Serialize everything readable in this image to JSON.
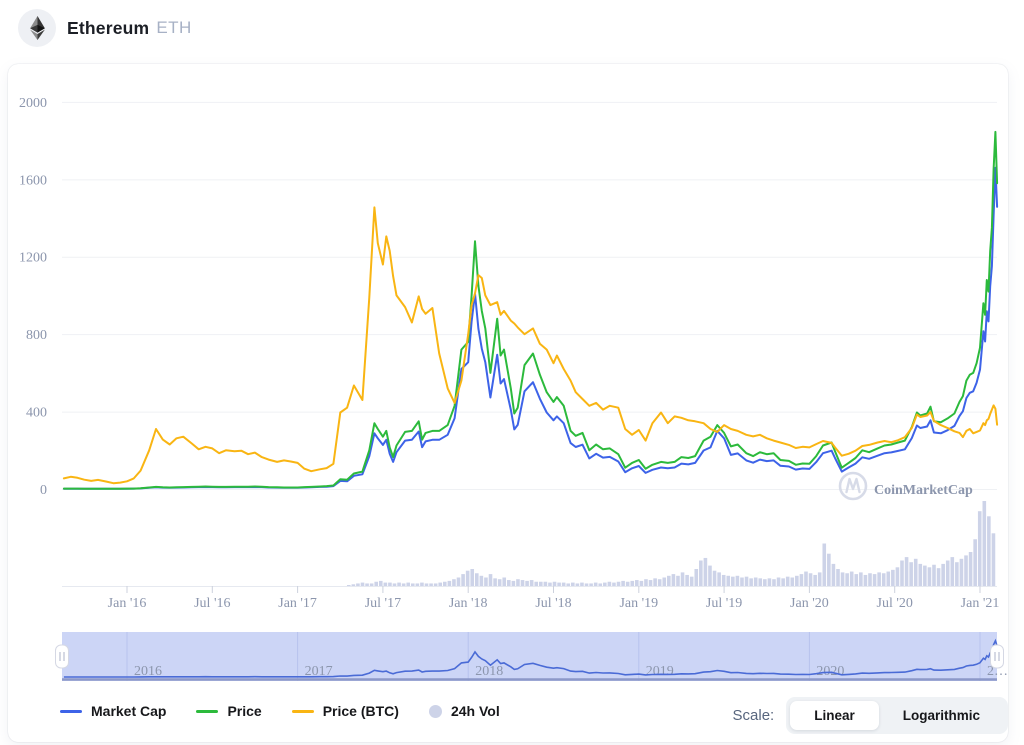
{
  "header": {
    "title": "Ethereum",
    "symbol": "ETH"
  },
  "legend": {
    "items": [
      {
        "label": "Market Cap",
        "color": "#3d63e8",
        "type": "line"
      },
      {
        "label": "Price",
        "color": "#2cba3c",
        "type": "line"
      },
      {
        "label": "Price (BTC)",
        "color": "#f9b513",
        "type": "line"
      },
      {
        "label": "24h Vol",
        "color": "#cdd3e8",
        "type": "dot"
      }
    ]
  },
  "scale_toggle": {
    "label": "Scale:",
    "options": [
      "Linear",
      "Logarithmic"
    ],
    "selected": "Linear"
  },
  "watermark": {
    "text": "CoinMarketCap"
  },
  "chart_data": {
    "type": "line",
    "title": "Ethereum (ETH) all-time chart, linear scale",
    "x_unit": "decimal_year",
    "xlim": [
      2015.62,
      2021.1
    ],
    "ylim": [
      0,
      2070
    ],
    "grid": true,
    "yticks": [
      0,
      400,
      800,
      1200,
      1600,
      2000
    ],
    "xticks": [
      {
        "t": 2016.0,
        "label": "Jan '16"
      },
      {
        "t": 2016.5,
        "label": "Jul '16"
      },
      {
        "t": 2017.0,
        "label": "Jan '17"
      },
      {
        "t": 2017.5,
        "label": "Jul '17"
      },
      {
        "t": 2018.0,
        "label": "Jan '18"
      },
      {
        "t": 2018.5,
        "label": "Jul '18"
      },
      {
        "t": 2019.0,
        "label": "Jan '19"
      },
      {
        "t": 2019.5,
        "label": "Jul '19"
      },
      {
        "t": 2020.0,
        "label": "Jan '20"
      },
      {
        "t": 2020.5,
        "label": "Jul '20"
      },
      {
        "t": 2021.0,
        "label": "Jan '21"
      }
    ],
    "x": [
      2015.63,
      2015.67,
      2015.71,
      2015.75,
      2015.79,
      2015.83,
      2015.88,
      2015.92,
      2015.96,
      2016.0,
      2016.04,
      2016.08,
      2016.13,
      2016.17,
      2016.21,
      2016.25,
      2016.29,
      2016.33,
      2016.38,
      2016.42,
      2016.46,
      2016.5,
      2016.54,
      2016.58,
      2016.63,
      2016.67,
      2016.71,
      2016.75,
      2016.79,
      2016.83,
      2016.88,
      2016.92,
      2016.96,
      2017.0,
      2017.04,
      2017.08,
      2017.13,
      2017.17,
      2017.21,
      2017.25,
      2017.29,
      2017.33,
      2017.38,
      2017.42,
      2017.45,
      2017.47,
      2017.5,
      2017.52,
      2017.54,
      2017.56,
      2017.58,
      2017.63,
      2017.67,
      2017.71,
      2017.73,
      2017.75,
      2017.79,
      2017.83,
      2017.88,
      2017.92,
      2017.96,
      2018.0,
      2018.02,
      2018.04,
      2018.06,
      2018.08,
      2018.1,
      2018.13,
      2018.17,
      2018.19,
      2018.21,
      2018.25,
      2018.27,
      2018.29,
      2018.33,
      2018.38,
      2018.42,
      2018.46,
      2018.5,
      2018.52,
      2018.56,
      2018.6,
      2018.63,
      2018.67,
      2018.71,
      2018.75,
      2018.79,
      2018.83,
      2018.88,
      2018.92,
      2018.96,
      2019.0,
      2019.04,
      2019.08,
      2019.13,
      2019.17,
      2019.21,
      2019.25,
      2019.29,
      2019.33,
      2019.38,
      2019.42,
      2019.46,
      2019.5,
      2019.54,
      2019.58,
      2019.63,
      2019.67,
      2019.71,
      2019.75,
      2019.79,
      2019.83,
      2019.88,
      2019.92,
      2019.96,
      2020.0,
      2020.04,
      2020.08,
      2020.13,
      2020.15,
      2020.19,
      2020.23,
      2020.27,
      2020.31,
      2020.35,
      2020.4,
      2020.44,
      2020.48,
      2020.52,
      2020.56,
      2020.6,
      2020.63,
      2020.65,
      2020.69,
      2020.71,
      2020.73,
      2020.77,
      2020.81,
      2020.85,
      2020.88,
      2020.9,
      2020.92,
      2020.94,
      2020.96,
      2020.98,
      2021.0,
      2021.02,
      2021.03,
      2021.04,
      2021.05,
      2021.06,
      2021.07,
      2021.08,
      2021.09,
      2021.1
    ],
    "series": [
      {
        "name": "Market Cap",
        "color": "#3d63e8",
        "values": [
          1,
          1,
          1,
          1,
          1,
          1,
          1,
          1,
          1,
          1,
          2,
          3,
          6,
          9,
          7,
          6,
          7,
          8,
          9,
          10,
          10,
          10,
          9,
          9,
          10,
          10,
          10,
          10,
          10,
          8,
          7,
          6,
          6,
          6,
          8,
          9,
          11,
          12,
          15,
          42,
          40,
          68,
          76,
          170,
          288,
          262,
          228,
          254,
          182,
          140,
          190,
          250,
          254,
          297,
          216,
          246,
          254,
          254,
          280,
          366,
          620,
          655,
          865,
          1010,
          828,
          725,
          655,
          473,
          694,
          545,
          568,
          410,
          308,
          331,
          505,
          552,
          466,
          395,
          355,
          375,
          340,
          237,
          217,
          229,
          158,
          182,
          162,
          166,
          142,
          87,
          107,
          119,
          83,
          99,
          111,
          107,
          111,
          131,
          127,
          135,
          199,
          215,
          300,
          262,
          176,
          184,
          148,
          136,
          152,
          144,
          148,
          120,
          116,
          100,
          106,
          104,
          139,
          185,
          198,
          160,
          90,
          111,
          131,
          164,
          156,
          172,
          185,
          189,
          197,
          205,
          263,
          328,
          315,
          323,
          355,
          292,
          288,
          304,
          326,
          377,
          402,
          470,
          497,
          505,
          549,
          617,
          815,
          762,
          918,
          866,
          1048,
          1152,
          1412,
          1660,
          1458
        ]
      },
      {
        "name": "Price",
        "color": "#2cba3c",
        "values": [
          2,
          2,
          2,
          1,
          1,
          1,
          1,
          1,
          1,
          2,
          2,
          4,
          8,
          11,
          9,
          8,
          9,
          10,
          11,
          12,
          13,
          12,
          11,
          11,
          12,
          12,
          12,
          13,
          12,
          10,
          9,
          8,
          8,
          8,
          10,
          11,
          13,
          15,
          18,
          50,
          48,
          80,
          90,
          200,
          340,
          310,
          270,
          300,
          215,
          165,
          225,
          295,
          300,
          350,
          255,
          290,
          300,
          300,
          330,
          430,
          720,
          760,
          1000,
          1280,
          1050,
          920,
          830,
          600,
          880,
          690,
          720,
          520,
          390,
          420,
          640,
          700,
          590,
          500,
          450,
          475,
          430,
          300,
          275,
          290,
          200,
          230,
          205,
          210,
          180,
          110,
          135,
          150,
          105,
          125,
          140,
          135,
          140,
          165,
          160,
          170,
          250,
          270,
          330,
          290,
          220,
          230,
          185,
          170,
          190,
          180,
          185,
          150,
          145,
          125,
          132,
          130,
          170,
          225,
          240,
          195,
          110,
          135,
          160,
          200,
          190,
          210,
          225,
          230,
          240,
          250,
          320,
          395,
          380,
          390,
          425,
          350,
          345,
          365,
          390,
          450,
          480,
          560,
          590,
          600,
          650,
          730,
          960,
          900,
          1080,
          1020,
          1230,
          1350,
          1650,
          1845,
          1580
        ]
      },
      {
        "name": "Price (BTC)",
        "color": "#f9b513",
        "values": [
          55,
          63,
          58,
          48,
          42,
          47,
          38,
          30,
          33,
          40,
          55,
          95,
          200,
          310,
          255,
          230,
          262,
          270,
          235,
          205,
          218,
          210,
          185,
          200,
          195,
          198,
          180,
          188,
          165,
          152,
          140,
          148,
          142,
          135,
          105,
          92,
          102,
          108,
          130,
          395,
          420,
          535,
          460,
          990,
          1455,
          1270,
          1160,
          1305,
          1230,
          1100,
          1000,
          940,
          860,
          995,
          930,
          905,
          935,
          700,
          520,
          445,
          560,
          800,
          950,
          1010,
          1105,
          1090,
          1000,
          950,
          965,
          900,
          920,
          870,
          855,
          835,
          800,
          830,
          750,
          720,
          650,
          690,
          620,
          560,
          500,
          465,
          430,
          445,
          410,
          430,
          420,
          310,
          280,
          305,
          250,
          340,
          395,
          340,
          375,
          368,
          355,
          350,
          340,
          310,
          295,
          330,
          310,
          300,
          280,
          272,
          280,
          262,
          250,
          240,
          228,
          212,
          218,
          215,
          232,
          248,
          238,
          215,
          172,
          182,
          198,
          222,
          228,
          240,
          248,
          242,
          252,
          268,
          315,
          385,
          372,
          380,
          398,
          352,
          330,
          315,
          298,
          290,
          268,
          300,
          310,
          288,
          295,
          302,
          340,
          330,
          355,
          362,
          388,
          410,
          432,
          415,
          332
        ]
      }
    ],
    "volume": {
      "name": "24h Vol",
      "color": "#cdd3e8",
      "x_start": 2017.3,
      "x_step": 0.0268,
      "values_pct_of_max": [
        1,
        2,
        3,
        4,
        3,
        3,
        5,
        6,
        4,
        4,
        3,
        4,
        3,
        4,
        3,
        3,
        4,
        3,
        3,
        3,
        4,
        5,
        6,
        8,
        10,
        14,
        18,
        20,
        15,
        12,
        10,
        14,
        9,
        8,
        10,
        7,
        6,
        8,
        7,
        6,
        7,
        5,
        5,
        5,
        4,
        5,
        4,
        4,
        3,
        4,
        3,
        4,
        3,
        3,
        4,
        3,
        4,
        5,
        4,
        5,
        6,
        5,
        6,
        7,
        6,
        8,
        7,
        9,
        8,
        10,
        12,
        14,
        12,
        16,
        13,
        11,
        20,
        30,
        33,
        24,
        18,
        16,
        13,
        12,
        11,
        12,
        10,
        11,
        9,
        10,
        9,
        8,
        9,
        8,
        10,
        9,
        11,
        10,
        12,
        14,
        17,
        15,
        13,
        16,
        50,
        38,
        26,
        20,
        16,
        15,
        17,
        14,
        16,
        13,
        15,
        14,
        16,
        15,
        17,
        19,
        22,
        30,
        34,
        28,
        32,
        26,
        24,
        22,
        25,
        21,
        26,
        30,
        34,
        28,
        32,
        36,
        40,
        55,
        88,
        100,
        82,
        62,
        70
      ]
    },
    "navigator": {
      "source_series": "Price",
      "years": [
        {
          "t": 2016,
          "label": "2016"
        },
        {
          "t": 2017,
          "label": "2017"
        },
        {
          "t": 2018,
          "label": "2018"
        },
        {
          "t": 2019,
          "label": "2019"
        },
        {
          "t": 2020,
          "label": "2020"
        },
        {
          "t": 2021,
          "label": "2…"
        }
      ]
    },
    "legend_position": "bottom"
  }
}
